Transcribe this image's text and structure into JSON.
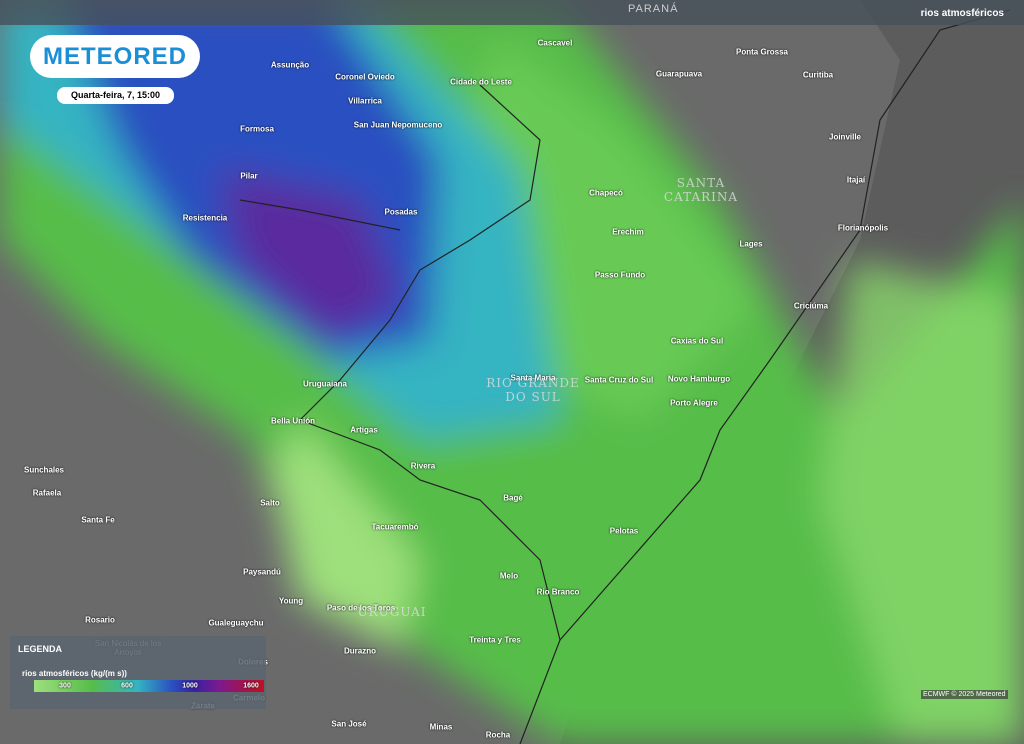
{
  "header": {
    "region_label": "PARANÁ",
    "layer": "rios atmosféricos"
  },
  "logo": {
    "brand": "METEORED",
    "timestamp": "Quarta-feira, 7, 15:00"
  },
  "map": {
    "regions": [
      "SANTA CATARINA",
      "RIO GRANDE DO SUL",
      "URUGUAI"
    ],
    "cities": [
      "Assunção",
      "Coronel Oviedo",
      "Cidade do Leste",
      "Cascavel",
      "Ponta Grossa",
      "Guarapuava",
      "Curitiba",
      "Villarrica",
      "San Juan Nepomuceno",
      "Formosa",
      "Joinville",
      "Pilar",
      "Itajaí",
      "Resistencia",
      "Posadas",
      "Chapecó",
      "Erechim",
      "Lages",
      "Florianópolis",
      "Passo Fundo",
      "Criciúma",
      "Caxias do Sul",
      "Uruguaiana",
      "Santa Maria",
      "Santa Cruz do Sul",
      "Novo Hamburgo",
      "Porto Alegre",
      "Bella Unión",
      "Artigas",
      "Rivera",
      "Sunchales",
      "Rafaela",
      "Bagé",
      "Salto",
      "Santa Fe",
      "Tacuarembó",
      "Pelotas",
      "Paysandú",
      "Melo",
      "Rio Branco",
      "Young",
      "Paso de los Toros",
      "Rosario",
      "Gualeguaychu",
      "Treinta y Tres",
      "San Nicolás de los Arroyos",
      "Durazno",
      "Dolores",
      "Carmelo",
      "Zárate",
      "San José",
      "Minas",
      "Rocha"
    ]
  },
  "legend": {
    "title": "LEGENDA",
    "variable": "rios atmosféricos (kg/(m s))",
    "scale_labels": [
      "300",
      "600",
      "1000",
      "1600"
    ]
  },
  "credit": "ECMWF © 2025 Meteored"
}
